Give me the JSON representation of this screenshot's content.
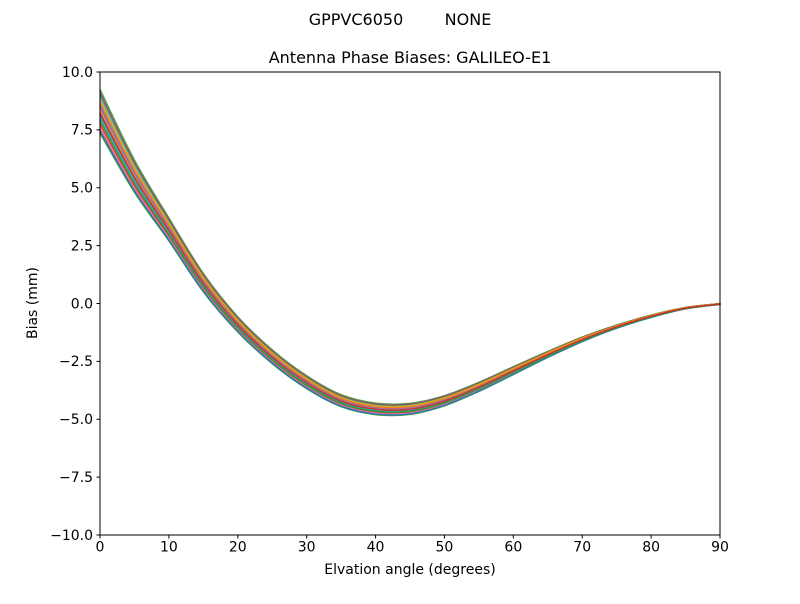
{
  "chart_data": {
    "type": "line",
    "suptitle_parts": [
      "GPPVC6050",
      "NONE"
    ],
    "title": "Antenna Phase Biases: GALILEO-E1",
    "xlabel": "Elvation angle (degrees)",
    "ylabel": "Bias (mm)",
    "xlim": [
      0,
      90
    ],
    "ylim": [
      -10,
      10
    ],
    "grid": false,
    "legend": "none",
    "background": "#ffffff",
    "axis_color": "#000000",
    "line_width": 1.4,
    "line_opacity": 0.9,
    "xticks": [
      {
        "value": 0,
        "label": "0"
      },
      {
        "value": 10,
        "label": "10"
      },
      {
        "value": 20,
        "label": "20"
      },
      {
        "value": 30,
        "label": "30"
      },
      {
        "value": 40,
        "label": "40"
      },
      {
        "value": 50,
        "label": "50"
      },
      {
        "value": 60,
        "label": "60"
      },
      {
        "value": 70,
        "label": "70"
      },
      {
        "value": 80,
        "label": "80"
      },
      {
        "value": 90,
        "label": "90"
      }
    ],
    "yticks": [
      {
        "value": 10,
        "label": "10.0"
      },
      {
        "value": 7.5,
        "label": "7.5"
      },
      {
        "value": 5,
        "label": "5.0"
      },
      {
        "value": 2.5,
        "label": "2.5"
      },
      {
        "value": 0,
        "label": "0.0"
      },
      {
        "value": -2.5,
        "label": "−2.5"
      },
      {
        "value": -5,
        "label": "−5.0"
      },
      {
        "value": -7.5,
        "label": "−7.5"
      },
      {
        "value": -10,
        "label": "−10.0"
      }
    ],
    "x": [
      0,
      5,
      10,
      15,
      20,
      25,
      30,
      35,
      40,
      45,
      50,
      55,
      60,
      65,
      70,
      75,
      80,
      85,
      90
    ],
    "base_curve_mm": [
      8.3,
      5.5,
      3.2,
      0.9,
      -0.9,
      -2.3,
      -3.4,
      -4.2,
      -4.55,
      -4.55,
      -4.2,
      -3.6,
      -2.9,
      -2.2,
      -1.55,
      -1.0,
      -0.55,
      -0.2,
      -0.02
    ],
    "band_half_spread_mm": [
      0.95,
      0.7,
      0.5,
      0.4,
      0.33,
      0.3,
      0.28,
      0.26,
      0.25,
      0.24,
      0.22,
      0.2,
      0.17,
      0.13,
      0.1,
      0.07,
      0.05,
      0.03,
      0.02
    ],
    "series_offsets": [
      0.3,
      -0.52,
      1.0,
      -0.83,
      0.65,
      -0.17,
      0.48,
      0.91,
      -0.95,
      0.74,
      -0.35,
      0.1,
      -1.0,
      -0.6,
      0.2,
      0.83,
      -0.74,
      -0.04,
      0.57,
      -0.26,
      -0.91,
      0.39,
      -0.43,
      -0.09
    ],
    "series_colors": [
      "#1f77b4",
      "#ff7f0e",
      "#2ca02c",
      "#d62728",
      "#9467bd",
      "#8c564b",
      "#e377c2",
      "#7f7f7f",
      "#bcbd22",
      "#17becf"
    ]
  }
}
